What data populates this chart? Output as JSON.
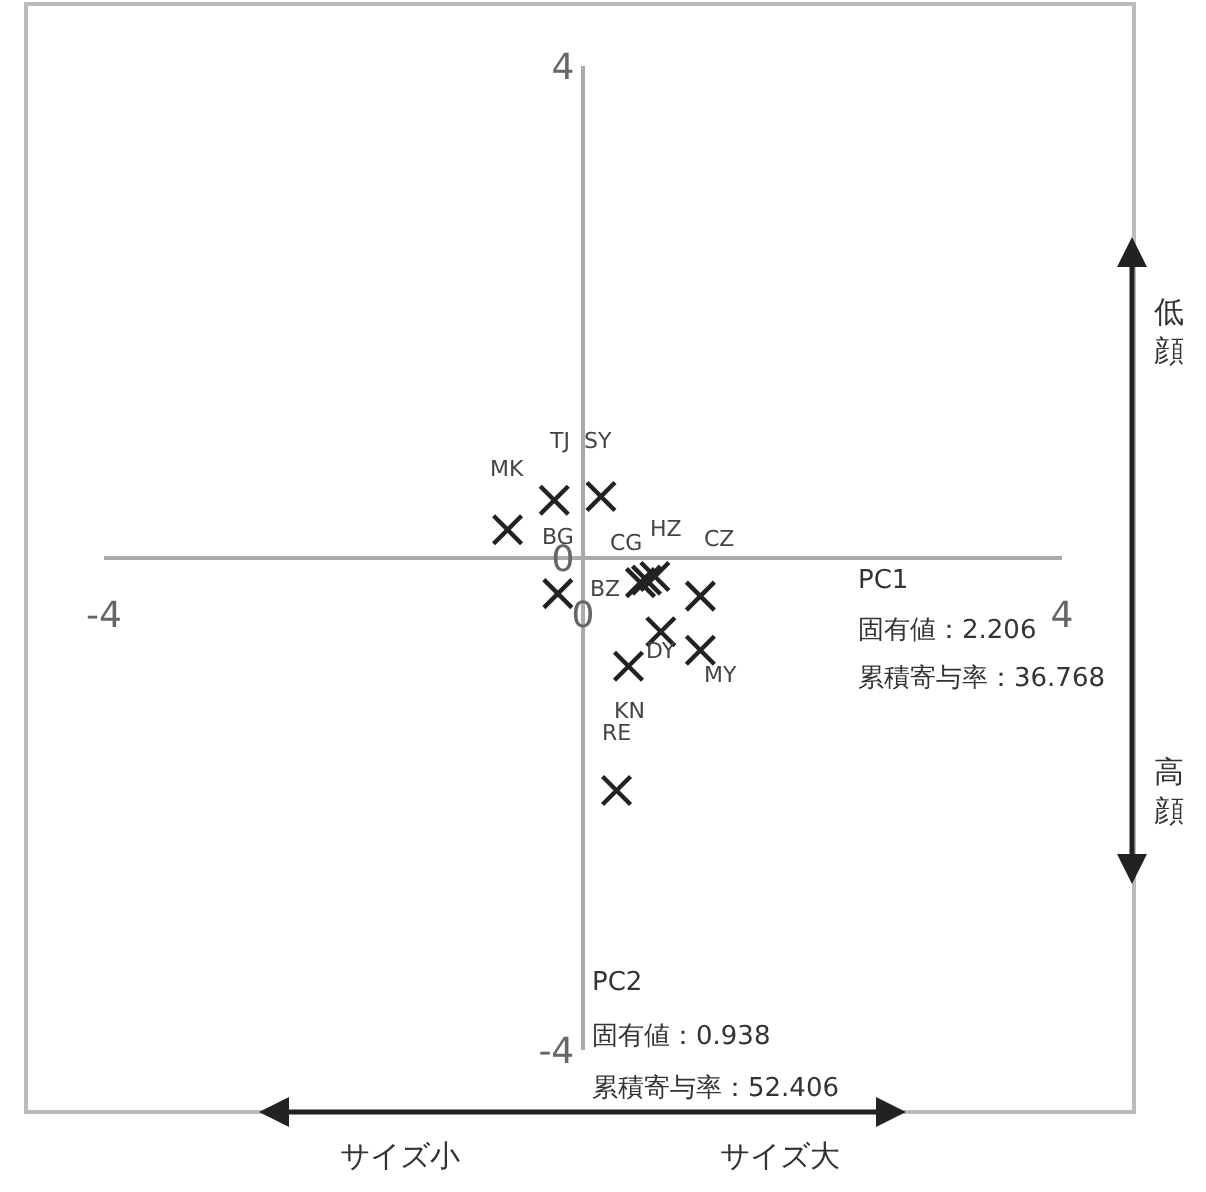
{
  "chart_data": {
    "type": "scatter",
    "marker": "cross",
    "x": [
      -0.63,
      -0.24,
      0.15,
      -0.21,
      0.53,
      0.6,
      0.48,
      0.98,
      0.65,
      0.98,
      0.38,
      0.28
    ],
    "series": [
      {
        "color": "#222222",
        "values": [
          0.23,
          0.47,
          0.5,
          -0.29,
          -0.18,
          -0.15,
          -0.2,
          -0.31,
          -0.6,
          -0.75,
          -0.88,
          -1.89
        ]
      }
    ],
    "xlim": [
      -4,
      4
    ],
    "ylim": [
      -4,
      4
    ],
    "xticks": [
      -4,
      0,
      4
    ],
    "yticks": [
      -4,
      0,
      4
    ],
    "annotations": [
      "PC1",
      "固有値：2.206",
      "累積寄与率：36.768",
      "PC2",
      "固有値：0.938",
      "累積寄与率：52.406",
      "サイズ小",
      "サイズ大",
      "低顔",
      "高顔",
      {
        "text": "MK",
        "x": -0.63,
        "y": 0.23
      },
      {
        "text": "TJ",
        "x": -0.24,
        "y": 0.47
      },
      {
        "text": "SY",
        "x": 0.15,
        "y": 0.5
      },
      {
        "text": "BG",
        "x": -0.21,
        "y": -0.29
      },
      {
        "text": "CG",
        "x": 0.53,
        "y": -0.18
      },
      {
        "text": "HZ",
        "x": 0.6,
        "y": -0.15
      },
      {
        "text": "BZ",
        "x": 0.48,
        "y": -0.2
      },
      {
        "text": "CZ",
        "x": 0.98,
        "y": -0.31
      },
      {
        "text": "DY",
        "x": 0.65,
        "y": -0.6
      },
      {
        "text": "MY",
        "x": 0.98,
        "y": -0.75
      },
      {
        "text": "KN",
        "x": 0.38,
        "y": -0.88
      },
      {
        "text": "RE",
        "x": 0.28,
        "y": -1.89
      }
    ]
  }
}
